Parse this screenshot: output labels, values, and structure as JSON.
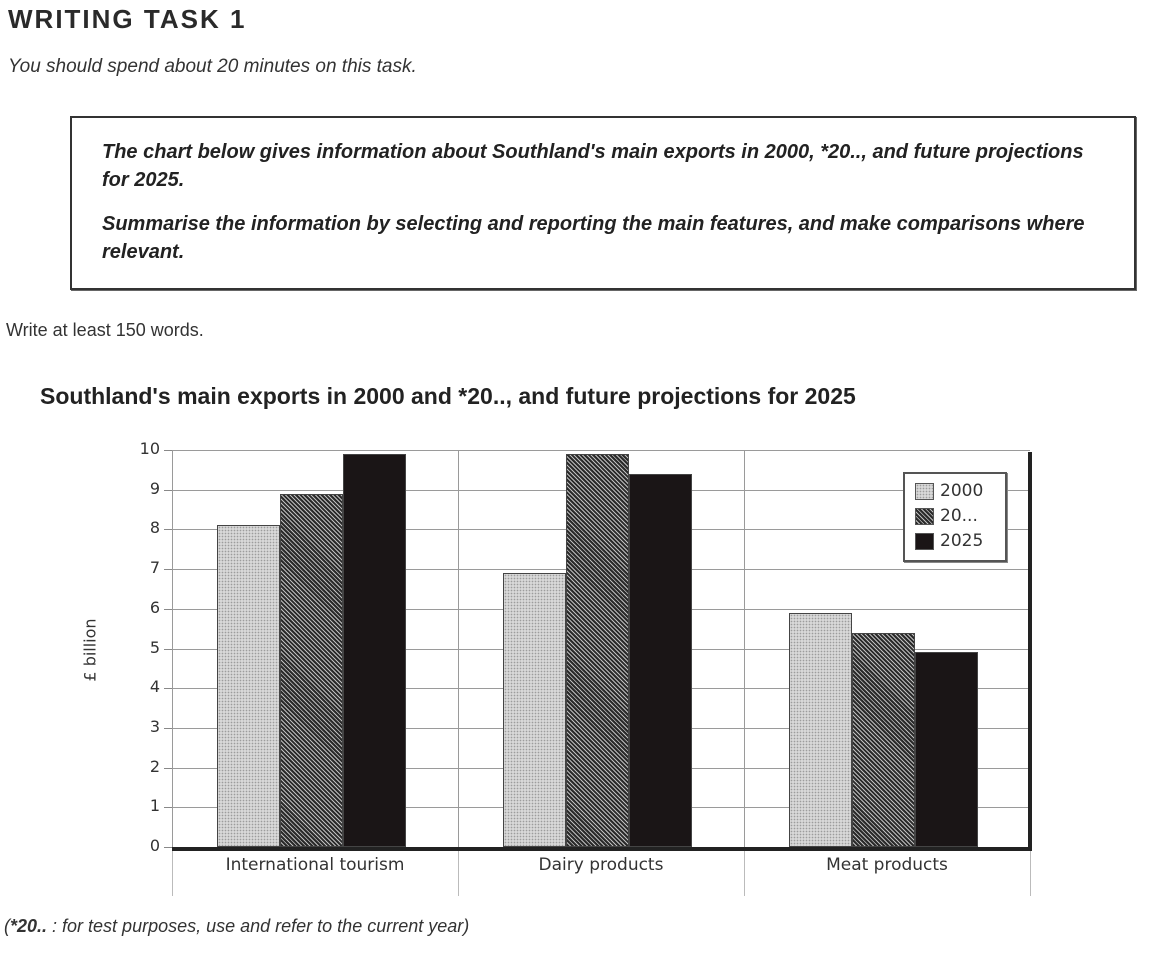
{
  "header": {
    "title": "WRITING TASK 1",
    "subtitle": "You should spend about 20 minutes on this task."
  },
  "prompt": {
    "paragraph1": "The chart below gives information about Southland's main exports in 2000, *20.., and future projections for 2025.",
    "paragraph2": "Summarise the information by selecting and reporting the main features, and make comparisons where relevant."
  },
  "word_requirement": "Write at least 150 words.",
  "footnote": {
    "marker": "*20..",
    "text": " : for test purposes, use and refer to the current year)",
    "open": "("
  },
  "chart_data": {
    "type": "bar",
    "title": "Southland's main exports in 2000 and *20.., and future projections for 2025",
    "xlabel": "",
    "ylabel": "£ billion",
    "ylim": [
      0,
      10
    ],
    "yticks": [
      "0",
      "1",
      "2",
      "3",
      "4",
      "5",
      "6",
      "7",
      "8",
      "9",
      "10"
    ],
    "grid": true,
    "legend_position": "top-right inside plot",
    "categories": [
      "International tourism",
      "Dairy products",
      "Meat products"
    ],
    "series": [
      {
        "name": "2000",
        "pattern": "light dotted grey",
        "values": [
          8.1,
          6.9,
          5.9
        ]
      },
      {
        "name": "20...",
        "pattern": "dark diagonal hatch",
        "values": [
          8.9,
          9.9,
          5.4
        ]
      },
      {
        "name": "2025",
        "pattern": "solid black",
        "values": [
          9.9,
          9.4,
          4.9
        ]
      }
    ]
  }
}
